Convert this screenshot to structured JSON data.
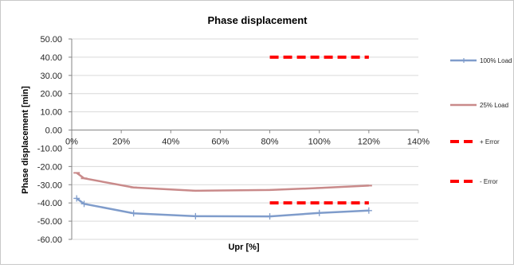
{
  "chart_data": {
    "type": "line",
    "title": "Phase displacement",
    "xlabel": "Upr [%]",
    "ylabel": "Phase displacement [min]",
    "xlim": [
      0,
      140
    ],
    "ylim": [
      -60,
      50
    ],
    "x_ticks": [
      "0%",
      "20%",
      "40%",
      "60%",
      "80%",
      "100%",
      "120%",
      "140%"
    ],
    "x_tick_values": [
      0,
      20,
      40,
      60,
      80,
      100,
      120,
      140
    ],
    "y_ticks": [
      "50.00",
      "40.00",
      "30.00",
      "20.00",
      "10.00",
      "0.00",
      "-10.00",
      "-20.00",
      "-30.00",
      "-40.00",
      "-50.00",
      "-60.00"
    ],
    "y_tick_values": [
      50,
      40,
      30,
      20,
      10,
      0,
      -10,
      -20,
      -30,
      -40,
      -50,
      -60
    ],
    "grid": "horizontal",
    "legend_position": "right",
    "series": [
      {
        "name": "100% Load",
        "color": "#7f9ccb",
        "style": "solid",
        "marker": "plus",
        "points": [
          [
            2,
            -37.5
          ],
          [
            5,
            -40.5
          ],
          [
            25,
            -45.7
          ],
          [
            50,
            -47.3
          ],
          [
            80,
            -47.4
          ],
          [
            100,
            -45.5
          ],
          [
            120,
            -44.2
          ]
        ]
      },
      {
        "name": "25% Load",
        "color": "#c98a8a",
        "style": "solid",
        "marker": "dash",
        "points": [
          [
            2,
            -23.5
          ],
          [
            5,
            -26.5
          ],
          [
            25,
            -31.5
          ],
          [
            50,
            -33.3
          ],
          [
            80,
            -32.9
          ],
          [
            100,
            -31.8
          ],
          [
            120,
            -30.5
          ]
        ]
      },
      {
        "name": "+ Error",
        "color": "#ff0000",
        "style": "dashed",
        "marker": "none",
        "points": [
          [
            80,
            40
          ],
          [
            120,
            40
          ]
        ]
      },
      {
        "name": "- Error",
        "color": "#ff0000",
        "style": "dashed",
        "marker": "none",
        "points": [
          [
            80,
            -40
          ],
          [
            120,
            -40
          ]
        ]
      }
    ]
  }
}
